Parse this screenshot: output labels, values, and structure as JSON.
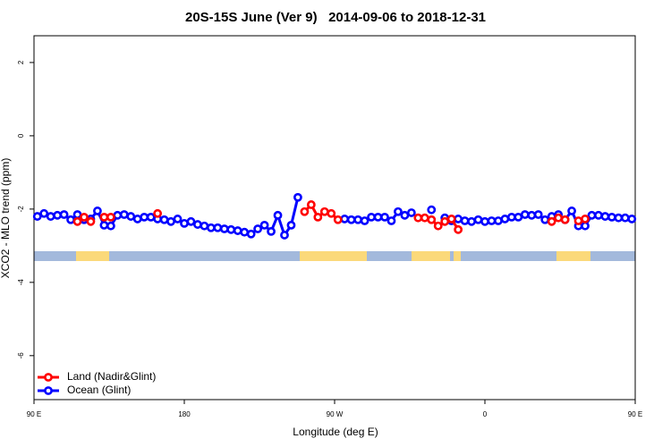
{
  "chart_data": {
    "type": "line",
    "title": "20S-15S June (Ver 9)   2014-09-06 to 2018-12-31",
    "x_label": "Longitude (deg E)",
    "y_label": "XCO2 - MLO trend (ppm)",
    "xlim": [
      90,
      450
    ],
    "xticks": [
      {
        "value": 90,
        "label": "90 E"
      },
      180,
      {
        "value": 270,
        "label": "90 W"
      },
      {
        "value": 360,
        "label": "0"
      },
      {
        "value": 450,
        "label": "90 E"
      }
    ],
    "ylim": [
      -7.2,
      2.73
    ],
    "yticks": [
      2,
      0,
      -2,
      -4,
      -6
    ],
    "legend": "bottom-left",
    "x": [
      92,
      96,
      100,
      104,
      108,
      112,
      116,
      120,
      124,
      128,
      132,
      136,
      140,
      144,
      148,
      152,
      156,
      160,
      164,
      168,
      172,
      176,
      180,
      184,
      188,
      192,
      196,
      200,
      204,
      208,
      212,
      216,
      220,
      224,
      228,
      232,
      236,
      240,
      244,
      248,
      252,
      256,
      260,
      264,
      268,
      272,
      276,
      280,
      284,
      288,
      292,
      296,
      300,
      304,
      308,
      312,
      316,
      320,
      324,
      328,
      332,
      336,
      340,
      344,
      348,
      352,
      356,
      360,
      364,
      368,
      372,
      376,
      380,
      384,
      388,
      392,
      396,
      400,
      404,
      408,
      412,
      416,
      420,
      424,
      428,
      432,
      436,
      440,
      444,
      448
    ],
    "series": [
      {
        "name": "Ocean (Glint)",
        "color": "#0000ff",
        "values": [
          -2.2,
          -2.12,
          -2.2,
          -2.17,
          -2.15,
          -2.29,
          -2.15,
          -2.29,
          -2.27,
          -2.05,
          -2.44,
          -2.46,
          -2.17,
          -2.15,
          -2.2,
          -2.27,
          -2.22,
          -2.22,
          -2.27,
          -2.29,
          -2.34,
          -2.27,
          -2.39,
          -2.34,
          -2.42,
          -2.46,
          -2.51,
          -2.51,
          -2.54,
          -2.56,
          -2.59,
          -2.63,
          -2.68,
          -2.54,
          -2.44,
          -2.61,
          -2.17,
          -2.71,
          -2.44,
          -1.68,
          null,
          null,
          null,
          null,
          null,
          null,
          -2.27,
          -2.29,
          -2.29,
          -2.32,
          -2.22,
          -2.22,
          -2.22,
          -2.32,
          -2.07,
          -2.17,
          -2.1,
          null,
          null,
          -2.02,
          null,
          -2.24,
          -2.32,
          -2.27,
          -2.32,
          -2.34,
          -2.29,
          -2.34,
          -2.32,
          -2.32,
          -2.27,
          -2.22,
          -2.22,
          -2.15,
          -2.17,
          -2.15,
          -2.29,
          -2.2,
          -2.15,
          -2.29,
          -2.05,
          -2.46,
          -2.46,
          -2.17,
          -2.17,
          -2.2,
          -2.22,
          -2.24,
          -2.24,
          -2.27
        ]
      },
      {
        "name": "Land (Nadir&Glint)",
        "color": "#ff0000",
        "values": [
          null,
          null,
          null,
          null,
          null,
          null,
          -2.34,
          -2.22,
          -2.34,
          null,
          -2.22,
          -2.22,
          null,
          null,
          null,
          null,
          null,
          null,
          -2.12,
          null,
          null,
          null,
          null,
          null,
          null,
          null,
          null,
          null,
          null,
          null,
          null,
          null,
          null,
          null,
          null,
          null,
          null,
          null,
          null,
          null,
          -2.07,
          -1.88,
          -2.22,
          -2.07,
          -2.12,
          -2.29,
          null,
          null,
          null,
          null,
          null,
          null,
          null,
          null,
          null,
          null,
          null,
          -2.24,
          -2.24,
          -2.29,
          -2.46,
          -2.34,
          -2.27,
          -2.56,
          null,
          null,
          null,
          null,
          null,
          null,
          null,
          null,
          null,
          null,
          null,
          null,
          null,
          -2.34,
          -2.24,
          -2.29,
          null,
          -2.32,
          -2.27,
          null,
          null,
          null,
          null,
          null,
          null,
          null
        ]
      }
    ]
  }
}
